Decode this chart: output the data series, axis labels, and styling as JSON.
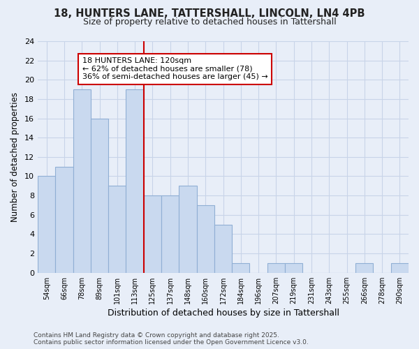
{
  "title1": "18, HUNTERS LANE, TATTERSHALL, LINCOLN, LN4 4PB",
  "title2": "Size of property relative to detached houses in Tattershall",
  "xlabel": "Distribution of detached houses by size in Tattershall",
  "ylabel": "Number of detached properties",
  "categories": [
    "54sqm",
    "66sqm",
    "78sqm",
    "89sqm",
    "101sqm",
    "113sqm",
    "125sqm",
    "137sqm",
    "148sqm",
    "160sqm",
    "172sqm",
    "184sqm",
    "196sqm",
    "207sqm",
    "219sqm",
    "231sqm",
    "243sqm",
    "255sqm",
    "266sqm",
    "278sqm",
    "290sqm"
  ],
  "values": [
    10,
    11,
    19,
    16,
    9,
    19,
    8,
    8,
    9,
    7,
    5,
    1,
    0,
    1,
    1,
    0,
    0,
    0,
    1,
    0,
    1
  ],
  "bar_color": "#c9d9ef",
  "bar_edge_color": "#90afd4",
  "vline_color": "#cc0000",
  "vline_pos": 5.5,
  "annotation_text": "18 HUNTERS LANE: 120sqm\n← 62% of detached houses are smaller (78)\n36% of semi-detached houses are larger (45) →",
  "ylim": [
    0,
    24
  ],
  "yticks": [
    0,
    2,
    4,
    6,
    8,
    10,
    12,
    14,
    16,
    18,
    20,
    22,
    24
  ],
  "grid_color": "#c8d4e8",
  "bg_color": "#e8eef8",
  "footer": "Contains HM Land Registry data © Crown copyright and database right 2025.\nContains public sector information licensed under the Open Government Licence v3.0.",
  "title1_fontsize": 10.5,
  "title2_fontsize": 9,
  "xlabel_fontsize": 9,
  "ylabel_fontsize": 8.5,
  "annot_fontsize": 8,
  "footer_fontsize": 6.5
}
